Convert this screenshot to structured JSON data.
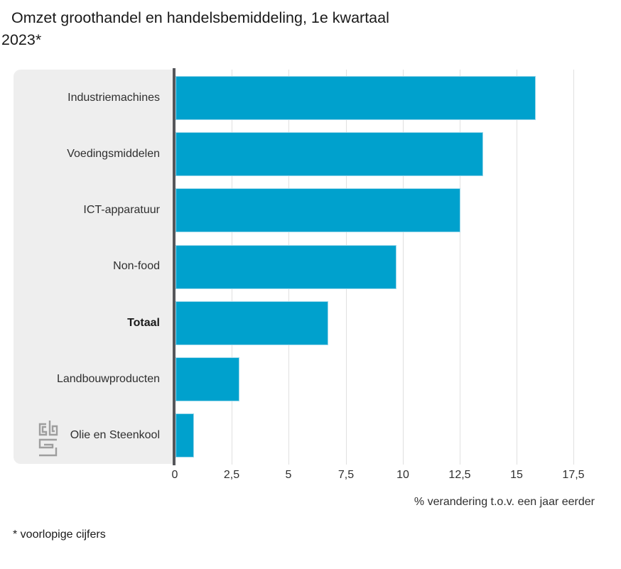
{
  "title": {
    "line1": "Omzet groothandel en handelsbemiddeling, 1e kwartaal",
    "line2": "2023*",
    "full": "Omzet groothandel en handelsbemiddeling, 1e kwartaal 2023*"
  },
  "footnote": "* voorlopige cijfers",
  "logo": {
    "name": "CBS",
    "color": "#9e9e9e"
  },
  "chart_data": {
    "type": "bar",
    "orientation": "horizontal",
    "title": "Omzet groothandel en handelsbemiddeling, 1e kwartaal 2023*",
    "categories": [
      "Industriemachines",
      "Voedingsmiddelen",
      "ICT-apparatuur",
      "Non-food",
      "Totaal",
      "Landbouwproducten",
      "Olie en Steenkool"
    ],
    "values": [
      15.8,
      13.5,
      12.5,
      9.7,
      6.7,
      2.8,
      0.8
    ],
    "bold_category": "Totaal",
    "xlabel": "% verandering t.o.v. een jaar eerder",
    "ylabel": "",
    "xlim": [
      0,
      17.5
    ],
    "x_tick_values": [
      0,
      2.5,
      5,
      7.5,
      10,
      12.5,
      15,
      17.5
    ],
    "x_tick_labels": [
      "0",
      "2,5",
      "5",
      "7,5",
      "10",
      "12,5",
      "15",
      "17,5"
    ],
    "grid": true,
    "legend": false,
    "colors": {
      "bar": "#00a1cd",
      "bar_border": "#9bd7ea",
      "label_panel": "#eeeeee",
      "axis_line": "#55565a",
      "gridline": "#e0e0e0",
      "text": "#2f2f2f"
    }
  }
}
